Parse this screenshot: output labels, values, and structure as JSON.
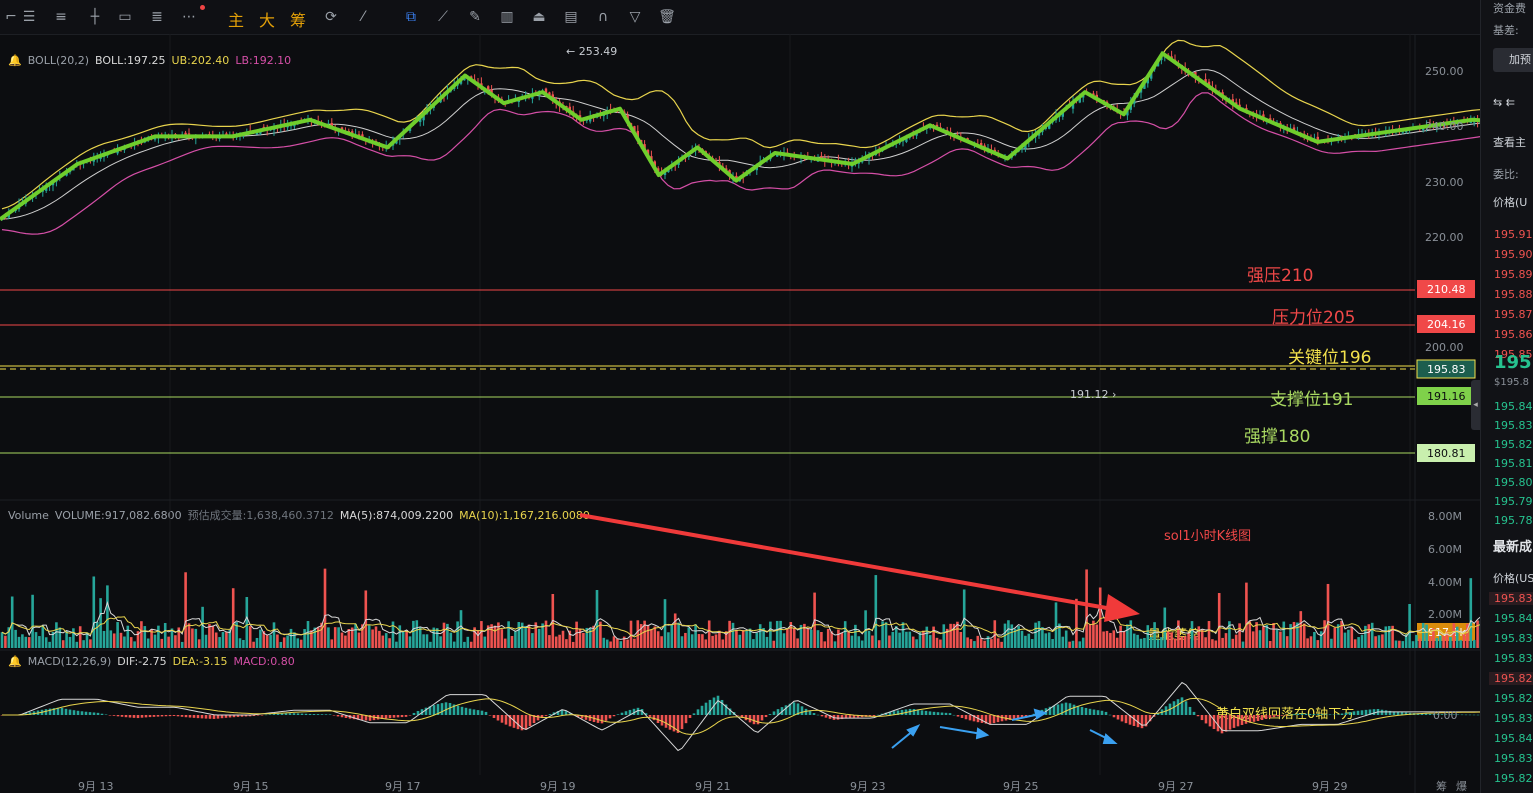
{
  "toolbar": {
    "text_buttons": [
      "主",
      "大",
      "筹"
    ]
  },
  "boll_legend": {
    "name": "BOLL(20,2)",
    "boll": "BOLL:197.25",
    "ub": "UB:202.40",
    "lb": "LB:192.10"
  },
  "volume_legend": {
    "name": "Volume",
    "volume": "VOLUME:917,082.6800",
    "estimated": "预估成交量:1,638,460.3712",
    "ma5": "MA(5):874,009.2200",
    "ma10": "MA(10):1,167,216.0080"
  },
  "macd_legend": {
    "name": "MACD(12,26,9)",
    "dif": "DIF:-2.75",
    "dea": "DEA:-3.15",
    "macd": "MACD:0.80"
  },
  "colors": {
    "up": "#26a69a",
    "down": "#ef5350",
    "zigzag": "#6fce2c",
    "ub": "#e8d44d",
    "mb": "#d8d8d8",
    "lb": "#d54fa7",
    "annotation_red": "#f04848",
    "annotation_yellow": "#f2e14c",
    "annotation_green": "#a9d861"
  },
  "price_axis": {
    "ticks": [
      "250.00",
      "240.00",
      "230.00",
      "220.00",
      "210.00",
      "200.00",
      "190.00"
    ],
    "level_tags": [
      "210.48",
      "204.16",
      "195.83",
      "191.16",
      "180.81"
    ]
  },
  "volume_axis": {
    "ticks": [
      "8.00M",
      "6.00M",
      "4.00M",
      "2.00M"
    ],
    "current": "917.1k"
  },
  "macd_axis": {
    "zero": "0.00"
  },
  "date_axis": [
    "9月 13",
    "9月 15",
    "9月 17",
    "9月 19",
    "9月 21",
    "9月 23",
    "9月 25",
    "9月 27",
    "9月 29"
  ],
  "axis_footer": [
    "筹",
    "爆"
  ],
  "annotations": {
    "high_marker": "← 253.49",
    "low_marker": "191.12 ›",
    "strong_resistance": "强压210",
    "resistance": "压力位205",
    "key_level": "关键位196",
    "support": "支撑位191",
    "strong_support": "强撑180",
    "chart_label": "sol1小时K线图",
    "volume_note": "量能萎缩",
    "macd_note": "黄白双线回落在0轴下方"
  },
  "chart_data": {
    "type": "candlestick",
    "title": "sol1小时K线图",
    "x_range": [
      "9月 12",
      "9月 30"
    ],
    "y_range": [
      188,
      255
    ],
    "zigzag_path": [
      {
        "x": "9月12 00:00",
        "y": 223
      },
      {
        "x": "9月12 12:00",
        "y": 233
      },
      {
        "x": "9月13 00:00",
        "y": 238
      },
      {
        "x": "9月13 12:00",
        "y": 238
      },
      {
        "x": "9月14 00:00",
        "y": 241
      },
      {
        "x": "9月14 12:00",
        "y": 236
      },
      {
        "x": "9月15 00:00",
        "y": 249
      },
      {
        "x": "9月15 06:00",
        "y": 244
      },
      {
        "x": "9月15 12:00",
        "y": 246
      },
      {
        "x": "9月15 18:00",
        "y": 241
      },
      {
        "x": "9月16 00:00",
        "y": 243
      },
      {
        "x": "9月16 06:00",
        "y": 231
      },
      {
        "x": "9月16 12:00",
        "y": 236
      },
      {
        "x": "9月16 18:00",
        "y": 230
      },
      {
        "x": "9月17 00:00",
        "y": 235
      },
      {
        "x": "9月17 12:00",
        "y": 233
      },
      {
        "x": "9月18 00:00",
        "y": 240
      },
      {
        "x": "9月18 12:00",
        "y": 234
      },
      {
        "x": "9月19 00:00",
        "y": 246
      },
      {
        "x": "9月19 06:00",
        "y": 242
      },
      {
        "x": "9月19 12:00",
        "y": 253
      },
      {
        "x": "9月20 00:00",
        "y": 243
      },
      {
        "x": "9月20 12:00",
        "y": 237
      },
      {
        "x": "9月21 00:00",
        "y": 239
      },
      {
        "x": "9月21 12:00",
        "y": 241
      },
      {
        "x": "9月22 00:00",
        "y": 240
      },
      {
        "x": "9月22 12:00",
        "y": 221
      },
      {
        "x": "9月22 18:00",
        "y": 228
      },
      {
        "x": "9月23 00:00",
        "y": 224
      },
      {
        "x": "9月23 06:00",
        "y": 228
      },
      {
        "x": "9月23 12:00",
        "y": 219
      },
      {
        "x": "9月24 00:00",
        "y": 224
      },
      {
        "x": "9月24 12:00",
        "y": 209
      },
      {
        "x": "9月25 00:00",
        "y": 216
      },
      {
        "x": "9月25 12:00",
        "y": 201
      },
      {
        "x": "9月26 00:00",
        "y": 193
      },
      {
        "x": "9月26 12:00",
        "y": 196
      }
    ],
    "horizontal_levels": [
      {
        "label": "强压210",
        "value": 210.48
      },
      {
        "label": "压力位205",
        "value": 204.16
      },
      {
        "label": "关键位196",
        "value": 195.83
      },
      {
        "label": "支撑位191",
        "value": 191.16
      },
      {
        "label": "强撑180",
        "value": 180.81
      }
    ],
    "high": 253.49,
    "low": 191.12,
    "last_price": 195.83,
    "boll": {
      "mid": 197.25,
      "upper": 202.4,
      "lower": 192.1
    },
    "volume": {
      "current": 917082.68,
      "ma5": 874009.22,
      "ma10": 1167216.008
    },
    "macd": {
      "dif": -2.75,
      "dea": -3.15,
      "macd": 0.8
    },
    "grid": false
  },
  "side_panel": {
    "header1": "资金费",
    "header2": "基差:",
    "button": "加预",
    "section": "查看主",
    "ratio": "委比:",
    "price_header": "价格(U",
    "asks": [
      "195.91",
      "195.90",
      "195.89",
      "195.88",
      "195.87",
      "195.86",
      "195.85"
    ],
    "last": "195.",
    "last_usd": "$195.8",
    "bids": [
      "195.84",
      "195.83",
      "195.82",
      "195.81",
      "195.80",
      "195.79",
      "195.78"
    ],
    "trades_title": "最新成",
    "trades_header": "价格(US",
    "trades": [
      "195.83",
      "195.84",
      "195.83",
      "195.83",
      "195.82",
      "195.82",
      "195.83",
      "195.84",
      "195.83",
      "195.82"
    ]
  }
}
